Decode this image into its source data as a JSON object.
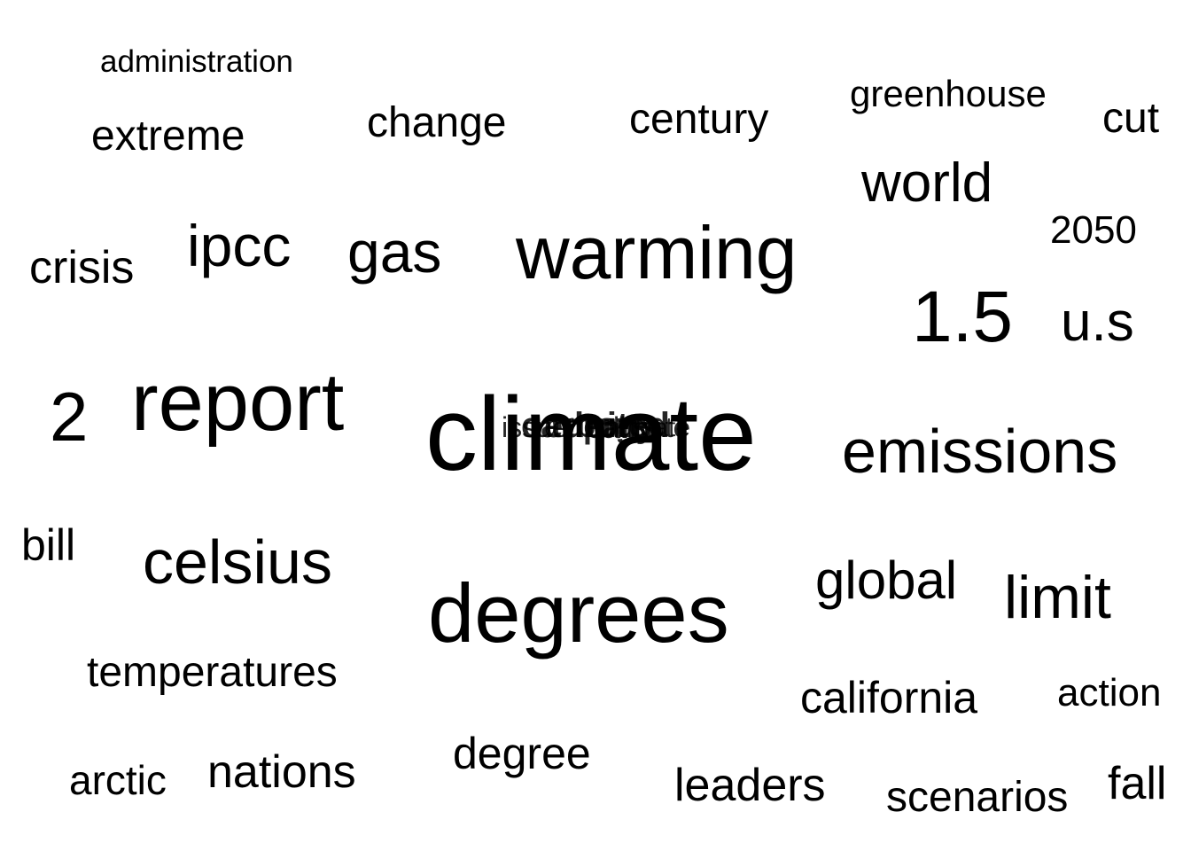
{
  "words": [
    {
      "text": "administration"
    },
    {
      "text": "greenhouse"
    },
    {
      "text": "cut"
    },
    {
      "text": "change"
    },
    {
      "text": "century"
    },
    {
      "text": "extreme"
    },
    {
      "text": "world"
    },
    {
      "text": "2050"
    },
    {
      "text": "ipcc"
    },
    {
      "text": "gas"
    },
    {
      "text": "warming"
    },
    {
      "text": "crisis"
    },
    {
      "text": "1.5"
    },
    {
      "text": "u.s"
    },
    {
      "text": "report"
    },
    {
      "text": "2"
    },
    {
      "text": "climate"
    },
    {
      "text": "emissions"
    },
    {
      "text": "bill"
    },
    {
      "text": "celsius"
    },
    {
      "text": "global"
    },
    {
      "text": "limit"
    },
    {
      "text": "degrees"
    },
    {
      "text": "temperatures"
    },
    {
      "text": "california"
    },
    {
      "text": "action"
    },
    {
      "text": "degree"
    },
    {
      "text": "arctic"
    },
    {
      "text": "nations"
    },
    {
      "text": "leaders"
    },
    {
      "text": "scenarios"
    },
    {
      "text": "fall"
    }
  ],
  "overlapping_cluster": [
    {
      "text": "issue"
    },
    {
      "text": "carbon"
    },
    {
      "text": "energy"
    },
    {
      "text": "united"
    },
    {
      "text": "paris"
    },
    {
      "text": "climate"
    },
    {
      "text": "state"
    }
  ]
}
